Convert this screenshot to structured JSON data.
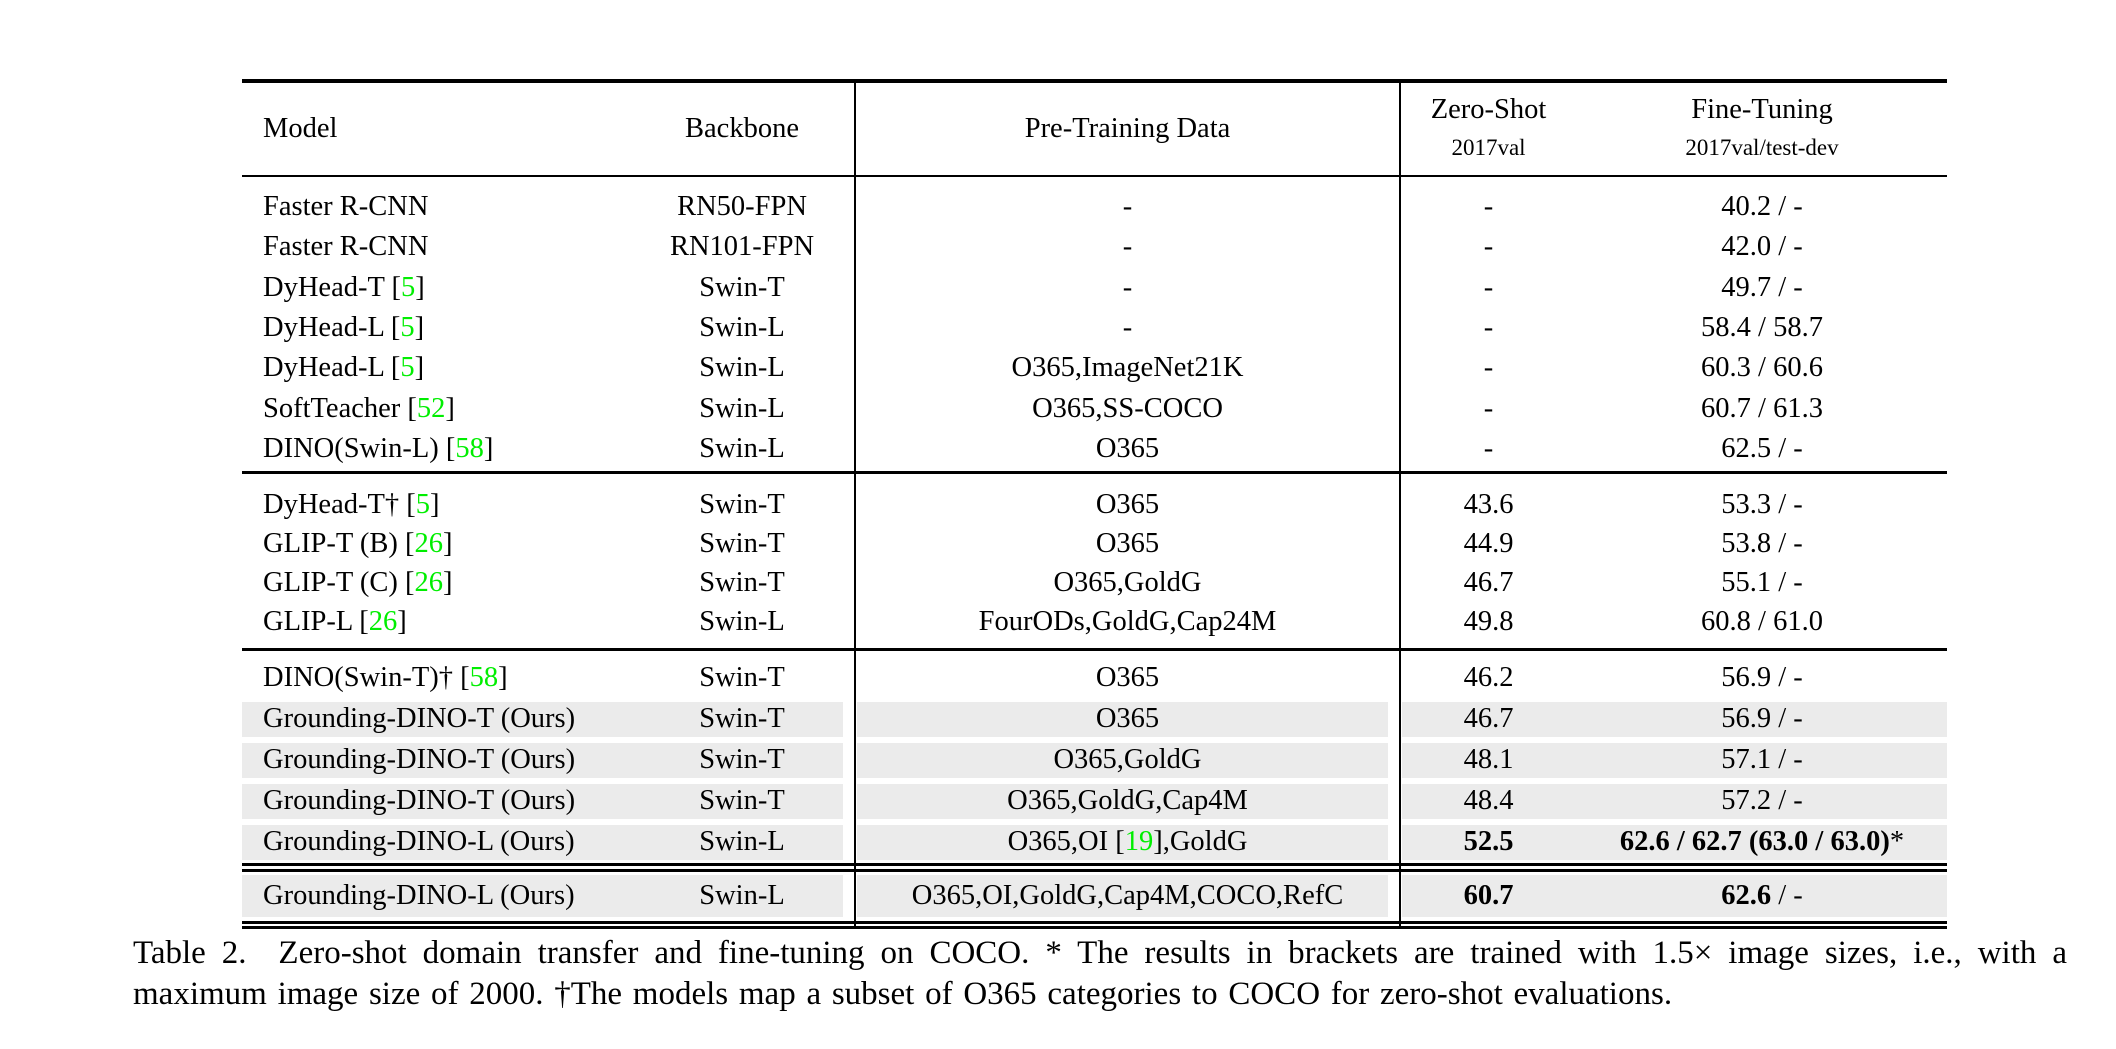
{
  "colors": {
    "citation_green": "#00ee00",
    "row_shade": "#ebebeb",
    "rule_black": "#000000"
  },
  "table": {
    "headers": {
      "model": "Model",
      "backbone": "Backbone",
      "pretrain": "Pre-Training Data",
      "zeroshot_title": "Zero-Shot",
      "zeroshot_sub": "2017val",
      "finetune_title": "Fine-Tuning",
      "finetune_sub": "2017val/test-dev"
    },
    "groups": [
      {
        "rows": [
          {
            "model": "Faster R-CNN",
            "backbone": "RN50-FPN",
            "pretrain": "-",
            "zeroshot": "-",
            "finetune": "40.2 / -"
          },
          {
            "model": "Faster R-CNN",
            "backbone": "RN101-FPN",
            "pretrain": "-",
            "zeroshot": "-",
            "finetune": "42.0 / -"
          },
          {
            "model": "DyHead-T [5]",
            "backbone": "Swin-T",
            "pretrain": "-",
            "zeroshot": "-",
            "finetune": "49.7 / -"
          },
          {
            "model": "DyHead-L [5]",
            "backbone": "Swin-L",
            "pretrain": "-",
            "zeroshot": "-",
            "finetune": "58.4 / 58.7"
          },
          {
            "model": "DyHead-L [5]",
            "backbone": "Swin-L",
            "pretrain": "O365,ImageNet21K",
            "zeroshot": "-",
            "finetune": "60.3 / 60.6"
          },
          {
            "model": "SoftTeacher [52]",
            "backbone": "Swin-L",
            "pretrain": "O365,SS-COCO",
            "zeroshot": "-",
            "finetune": "60.7 / 61.3"
          },
          {
            "model": "DINO(Swin-L) [58]",
            "backbone": "Swin-L",
            "pretrain": "O365",
            "zeroshot": "-",
            "finetune": "62.5 / -"
          }
        ]
      },
      {
        "rows": [
          {
            "model": "DyHead-T† [5]",
            "backbone": "Swin-T",
            "pretrain": "O365",
            "zeroshot": "43.6",
            "finetune": "53.3 / -"
          },
          {
            "model": "GLIP-T (B) [26]",
            "backbone": "Swin-T",
            "pretrain": "O365",
            "zeroshot": "44.9",
            "finetune": "53.8 / -"
          },
          {
            "model": "GLIP-T (C) [26]",
            "backbone": "Swin-T",
            "pretrain": "O365,GoldG",
            "zeroshot": "46.7",
            "finetune": "55.1 / -"
          },
          {
            "model": "GLIP-L [26]",
            "backbone": "Swin-L",
            "pretrain": "FourODs,GoldG,Cap24M",
            "zeroshot": "49.8",
            "finetune": "60.8 / 61.0"
          }
        ]
      },
      {
        "rows": [
          {
            "model": "DINO(Swin-T)† [58]",
            "backbone": "Swin-T",
            "pretrain": "O365",
            "zeroshot": "46.2",
            "finetune": "56.9 / -"
          },
          {
            "model": "Grounding-DINO-T (Ours)",
            "backbone": "Swin-T",
            "pretrain": "O365",
            "zeroshot": "46.7",
            "finetune": "56.9 / -",
            "shaded": true
          },
          {
            "model": "Grounding-DINO-T (Ours)",
            "backbone": "Swin-T",
            "pretrain": "O365,GoldG",
            "zeroshot": "48.1",
            "finetune": "57.1 / -",
            "shaded": true
          },
          {
            "model": "Grounding-DINO-T (Ours)",
            "backbone": "Swin-T",
            "pretrain": "O365,GoldG,Cap4M",
            "zeroshot": "48.4",
            "finetune": "57.2 / -",
            "shaded": true
          },
          {
            "model": "Grounding-DINO-L (Ours)",
            "backbone": "Swin-L",
            "pretrain": "O365,OI [19],GoldG",
            "zeroshot": {
              "bold": "52.5"
            },
            "finetune": {
              "bold": "62.6 / 62.7 (63.0 / 63.0)",
              "regular": "*"
            },
            "shaded": true
          }
        ]
      },
      {
        "rows": [
          {
            "model": "Grounding-DINO-L (Ours)",
            "backbone": "Swin-L",
            "pretrain": "O365,OI,GoldG,Cap4M,COCO,RefC",
            "zeroshot": {
              "bold": "60.7"
            },
            "finetune": {
              "bold": "62.6",
              "regular": " / -"
            },
            "shaded": true
          }
        ]
      }
    ]
  },
  "caption": {
    "line1": "Table 2.  Zero-shot domain transfer and fine-tuning on COCO. * The results in brackets are trained with 1.5× image sizes, i.e., with a",
    "line2": "maximum image size of 2000. †The models map a subset of O365 categories to COCO for zero-shot evaluations."
  }
}
